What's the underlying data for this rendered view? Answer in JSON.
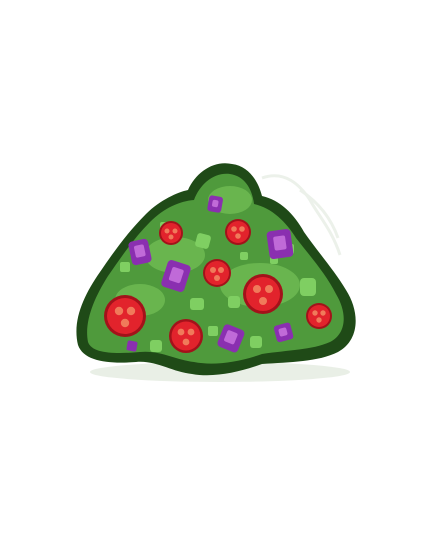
{
  "item": {
    "icon": "salad-pile-icon",
    "colors": {
      "outline": "#1f4a17",
      "body": "#4f9a3c",
      "body_light": "#6cb851",
      "lettuce": "#7fcf62",
      "tomato": "#e2232c",
      "tomato_dark": "#a3121a",
      "tomato_seed": "#f07a5a",
      "onion": "#8a2fb0",
      "onion_light": "#c06ad8",
      "steam": "#e6ece4"
    }
  }
}
